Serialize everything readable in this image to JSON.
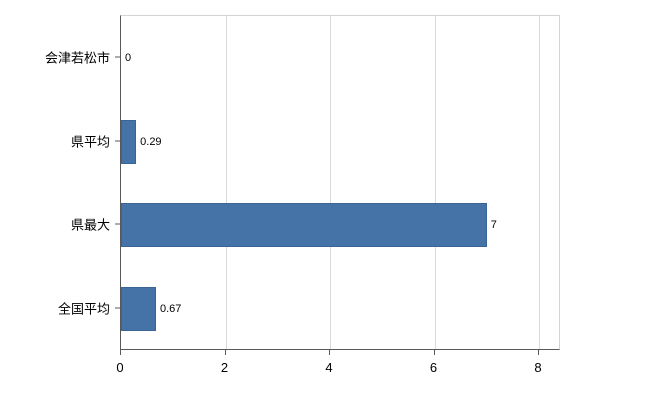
{
  "chart_data": {
    "type": "bar",
    "orientation": "horizontal",
    "title": "",
    "xlabel": "",
    "ylabel": "",
    "categories": [
      "会津若松市",
      "県平均",
      "県最大",
      "全国平均"
    ],
    "values": [
      0,
      0.29,
      7,
      0.67
    ],
    "value_labels": [
      "0",
      "0.29",
      "7",
      "0.67"
    ],
    "xlim": [
      0,
      8
    ],
    "xticks": [
      0,
      2,
      4,
      6,
      8
    ],
    "xtick_labels": [
      "0",
      "2",
      "4",
      "6",
      "8"
    ],
    "bar_color": "#4573a7",
    "grid": true,
    "legend": "none"
  }
}
